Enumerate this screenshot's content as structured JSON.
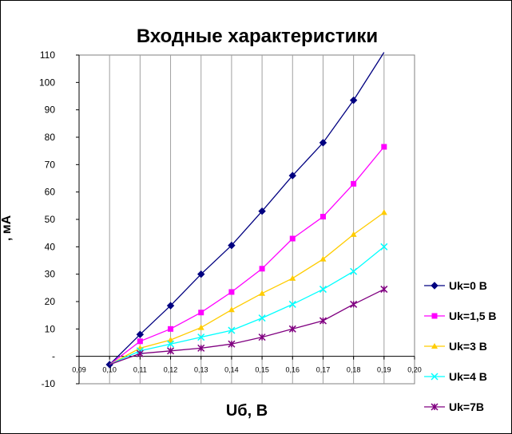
{
  "chart_data": {
    "type": "line",
    "title": "Входные характеристики",
    "xlabel": "Uб, В",
    "ylabel": ", мА",
    "xlim": [
      0.09,
      0.2
    ],
    "ylim": [
      -10,
      110
    ],
    "xticks": [
      "0,09",
      "0,10",
      "0,11",
      "0,12",
      "0,13",
      "0,14",
      "0,15",
      "0,16",
      "0,17",
      "0,18",
      "0,19",
      "0,20"
    ],
    "yticks": [
      "-10",
      "-",
      "10",
      "20",
      "30",
      "40",
      "50",
      "60",
      "70",
      "80",
      "90",
      "100",
      "110"
    ],
    "grid": {
      "vertical": true,
      "horizontal": false
    },
    "legend_position": "right",
    "series": [
      {
        "name": "Uk=0 В",
        "color": "#000080",
        "marker": "diamond",
        "points": [
          [
            0.1,
            -3
          ],
          [
            0.11,
            8
          ],
          [
            0.12,
            18.5
          ],
          [
            0.13,
            30
          ],
          [
            0.14,
            40.5
          ],
          [
            0.15,
            53
          ],
          [
            0.16,
            66
          ],
          [
            0.17,
            78
          ],
          [
            0.18,
            93.5
          ],
          [
            0.19,
            111
          ]
        ]
      },
      {
        "name": "Uk=1,5 В",
        "color": "#ff00ff",
        "marker": "square",
        "points": [
          [
            0.1,
            -3
          ],
          [
            0.11,
            5.5
          ],
          [
            0.12,
            10
          ],
          [
            0.13,
            16
          ],
          [
            0.14,
            23.5
          ],
          [
            0.15,
            32
          ],
          [
            0.16,
            43
          ],
          [
            0.17,
            51
          ],
          [
            0.18,
            63
          ],
          [
            0.19,
            76.5
          ]
        ]
      },
      {
        "name": "Uk=3 В",
        "color": "#ffcc00",
        "marker": "triangle",
        "points": [
          [
            0.1,
            -3
          ],
          [
            0.11,
            3
          ],
          [
            0.12,
            6
          ],
          [
            0.13,
            10.5
          ],
          [
            0.14,
            17
          ],
          [
            0.15,
            23
          ],
          [
            0.16,
            28.5
          ],
          [
            0.17,
            35.5
          ],
          [
            0.18,
            44.5
          ],
          [
            0.19,
            52.5
          ]
        ]
      },
      {
        "name": "Uk=4 В",
        "color": "#00ffff",
        "marker": "x",
        "points": [
          [
            0.1,
            -3
          ],
          [
            0.11,
            2
          ],
          [
            0.12,
            4.5
          ],
          [
            0.13,
            7
          ],
          [
            0.14,
            9.5
          ],
          [
            0.15,
            14
          ],
          [
            0.16,
            19
          ],
          [
            0.17,
            24.5
          ],
          [
            0.18,
            31
          ],
          [
            0.19,
            40
          ]
        ]
      },
      {
        "name": "Uk=7В",
        "color": "#800080",
        "marker": "star",
        "points": [
          [
            0.1,
            -3
          ],
          [
            0.11,
            1
          ],
          [
            0.12,
            2
          ],
          [
            0.13,
            3
          ],
          [
            0.14,
            4.5
          ],
          [
            0.15,
            7
          ],
          [
            0.16,
            10
          ],
          [
            0.17,
            13
          ],
          [
            0.18,
            19
          ],
          [
            0.19,
            24.5
          ]
        ]
      }
    ]
  }
}
